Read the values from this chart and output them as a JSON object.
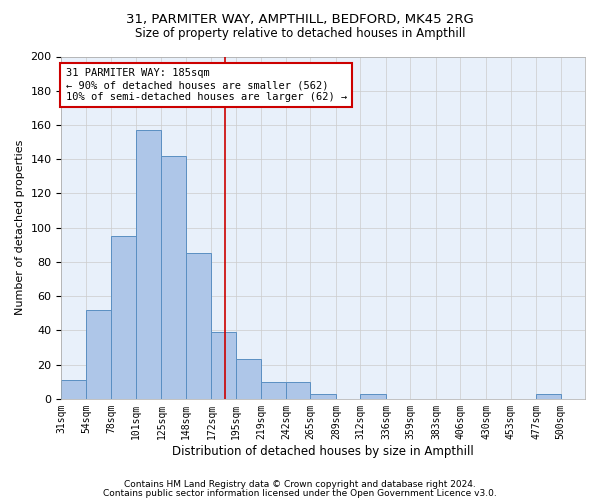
{
  "title1": "31, PARMITER WAY, AMPTHILL, BEDFORD, MK45 2RG",
  "title2": "Size of property relative to detached houses in Ampthill",
  "xlabel": "Distribution of detached houses by size in Ampthill",
  "ylabel": "Number of detached properties",
  "bin_labels": [
    "31sqm",
    "54sqm",
    "78sqm",
    "101sqm",
    "125sqm",
    "148sqm",
    "172sqm",
    "195sqm",
    "219sqm",
    "242sqm",
    "265sqm",
    "289sqm",
    "312sqm",
    "336sqm",
    "359sqm",
    "383sqm",
    "406sqm",
    "430sqm",
    "453sqm",
    "477sqm",
    "500sqm"
  ],
  "bar_values": [
    11,
    52,
    95,
    157,
    142,
    85,
    39,
    23,
    10,
    10,
    3,
    0,
    3,
    0,
    0,
    0,
    0,
    0,
    0,
    3,
    0
  ],
  "bar_color": "#aec6e8",
  "bar_edge_color": "#5a8fc2",
  "grid_color": "#cccccc",
  "bg_color": "#e8f0fa",
  "vline_x": 185,
  "vline_color": "#cc0000",
  "annotation_line1": "31 PARMITER WAY: 185sqm",
  "annotation_line2": "← 90% of detached houses are smaller (562)",
  "annotation_line3": "10% of semi-detached houses are larger (62) →",
  "annotation_box_color": "#cc0000",
  "footer1": "Contains HM Land Registry data © Crown copyright and database right 2024.",
  "footer2": "Contains public sector information licensed under the Open Government Licence v3.0.",
  "ylim": [
    0,
    200
  ],
  "bin_edges": [
    31,
    54,
    78,
    101,
    125,
    148,
    172,
    195,
    219,
    242,
    265,
    289,
    312,
    336,
    359,
    383,
    406,
    430,
    453,
    477,
    500
  ]
}
